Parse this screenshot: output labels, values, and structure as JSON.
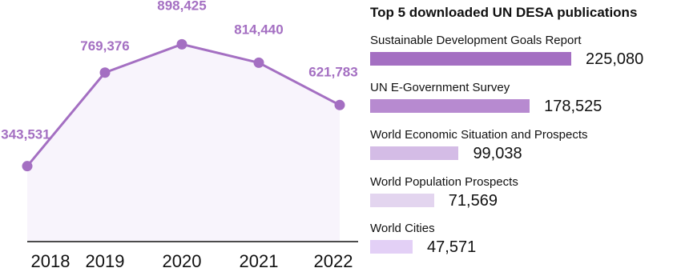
{
  "chart_data": [
    {
      "type": "area",
      "categories": [
        "2018",
        "2019",
        "2020",
        "2021",
        "2022"
      ],
      "values": [
        343531,
        769376,
        898425,
        814440,
        621783
      ],
      "labels": [
        "343,531",
        "769,376",
        "898,425",
        "814,440",
        "621,783"
      ],
      "ylim": [
        0,
        1100000
      ],
      "grid": false,
      "colors": {
        "line": "#a46fc2",
        "label": "#a46fc2",
        "fill": "#f8f4fc"
      }
    },
    {
      "type": "bar",
      "orientation": "horizontal",
      "title": "Top 5 downloaded UN DESA publications",
      "categories": [
        "Sustainable Development Goals Report",
        "UN E-Government Survey",
        "World Economic Situation and Prospects",
        "World Population Prospects",
        "World Cities"
      ],
      "values": [
        225080,
        178525,
        99038,
        71569,
        47571
      ],
      "labels": [
        "225,080",
        "178,525",
        "99,038",
        "71,569",
        "47,571"
      ],
      "colors": [
        "#a46fc2",
        "#b78ad0",
        "#d4bce6",
        "#e3d5ef",
        "#e3d0f6"
      ]
    }
  ]
}
